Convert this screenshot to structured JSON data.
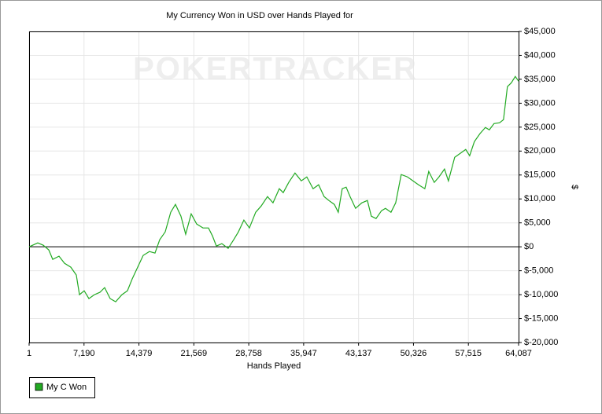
{
  "chart_data": {
    "type": "line",
    "title": "My Currency Won in USD over Hands Played for",
    "watermark": "POKERTRACKER",
    "x_label": "Hands Played",
    "y_label": "$",
    "y_axis_side": "right",
    "grid": true,
    "zero_line": true,
    "legend_position": "bottom-left",
    "xlim": [
      1,
      64087
    ],
    "xticks": [
      1,
      {
        "value": 7190,
        "label": "7,190"
      },
      {
        "value": 14379,
        "label": "14,379"
      },
      {
        "value": 21569,
        "label": "21,569"
      },
      {
        "value": 28758,
        "label": "28,758"
      },
      {
        "value": 35947,
        "label": "35,947"
      },
      {
        "value": 43137,
        "label": "43,137"
      },
      {
        "value": 50326,
        "label": "50,326"
      },
      {
        "value": 57515,
        "label": "57,515"
      },
      {
        "value": 64087,
        "label": "64,087"
      }
    ],
    "ylim": [
      -20000,
      45000
    ],
    "yticks": [
      {
        "value": -20000,
        "label": "$-20,000"
      },
      {
        "value": -15000,
        "label": "$-15,000"
      },
      {
        "value": -10000,
        "label": "$-10,000"
      },
      {
        "value": -5000,
        "label": "$-5,000"
      },
      {
        "value": 0,
        "label": "$0"
      },
      {
        "value": 5000,
        "label": "$5,000"
      },
      {
        "value": 10000,
        "label": "$10,000"
      },
      {
        "value": 15000,
        "label": "$15,000"
      },
      {
        "value": 20000,
        "label": "$20,000"
      },
      {
        "value": 25000,
        "label": "$25,000"
      },
      {
        "value": 30000,
        "label": "$30,000"
      },
      {
        "value": 35000,
        "label": "$35,000"
      },
      {
        "value": 40000,
        "label": "$40,000"
      },
      {
        "value": 45000,
        "label": "$45,000"
      }
    ],
    "x": [
      1,
      1134,
      1855,
      2576,
      3091,
      3915,
      4636,
      5460,
      6181,
      6593,
      7211,
      7829,
      8550,
      9271,
      9889,
      10610,
      11331,
      12155,
      12876,
      13494,
      14215,
      14936,
      15760,
      16481,
      17099,
      17820,
      18541,
      19159,
      19880,
      20498,
      21219,
      21940,
      22764,
      23485,
      24000,
      24516,
      25237,
      26061,
      26782,
      27400,
      28121,
      28842,
      29666,
      30387,
      31211,
      31932,
      32756,
      33271,
      33992,
      34813,
      35637,
      36358,
      37182,
      37903,
      38624,
      39242,
      39963,
      40478,
      40994,
      41509,
      42024,
      42745,
      43569,
      44290,
      44805,
      45423,
      46144,
      46659,
      47380,
      47998,
      48719,
      49543,
      50264,
      50985,
      51809,
      52324,
      53045,
      53663,
      54384,
      54899,
      55723,
      56444,
      57165,
      57680,
      58298,
      59019,
      59740,
      60255,
      60873,
      61594,
      62110,
      62625,
      63140,
      63655,
      64087
    ],
    "series": [
      {
        "name": "My C Won",
        "color": "#22aa22",
        "values": [
          0,
          820,
          328,
          -656,
          -2624,
          -1968,
          -3444,
          -4264,
          -5904,
          -10004,
          -9184,
          -10824,
          -10004,
          -9512,
          -8528,
          -10824,
          -11480,
          -10004,
          -9184,
          -6724,
          -4264,
          -1804,
          -984,
          -1312,
          1476,
          3116,
          7216,
          8856,
          6396,
          2624,
          6888,
          4756,
          3936,
          3936,
          2296,
          164,
          656,
          -328,
          1476,
          3116,
          5576,
          3936,
          7216,
          8528,
          10496,
          9184,
          12136,
          11316,
          13448,
          15416,
          13776,
          14596,
          12136,
          12956,
          10496,
          9676,
          8856,
          7216,
          12136,
          12464,
          10496,
          8036,
          9184,
          9676,
          6396,
          5904,
          7544,
          8036,
          7216,
          9184,
          15088,
          14596,
          13776,
          12956,
          12136,
          15744,
          13448,
          14596,
          16236,
          13776,
          18696,
          19516,
          20336,
          19024,
          21976,
          23616,
          24928,
          24436,
          25748,
          25912,
          26568,
          33456,
          34276,
          35588,
          34604
        ]
      }
    ]
  }
}
